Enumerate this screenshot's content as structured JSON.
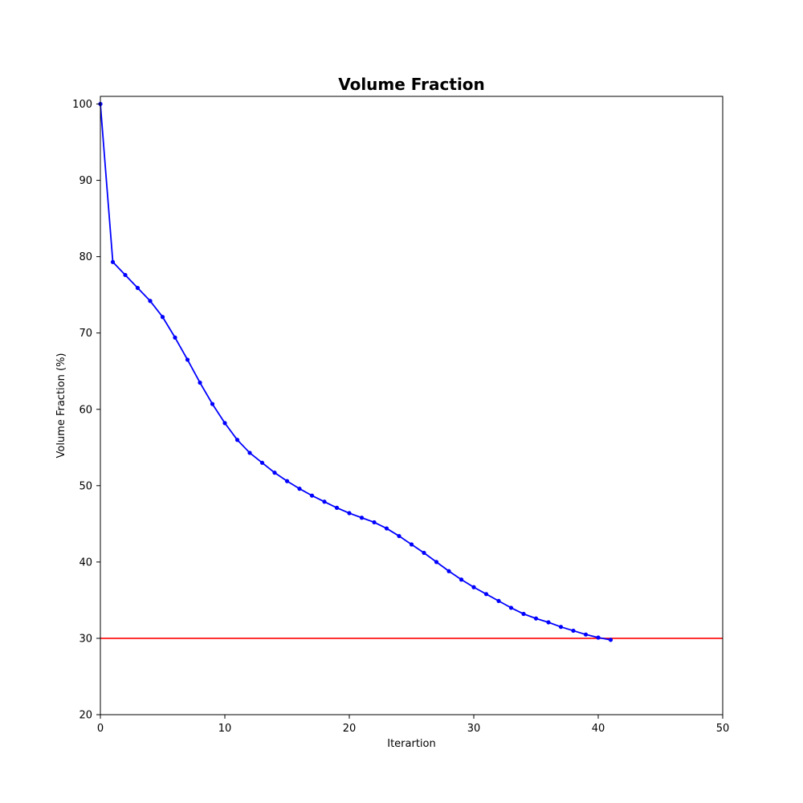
{
  "chart_data": {
    "type": "line",
    "title": "Volume Fraction",
    "xlabel": "Iterartion",
    "ylabel": "Volume Fraction (%)",
    "xlim": [
      0,
      50
    ],
    "ylim": [
      20,
      101
    ],
    "xticks": [
      "0",
      "10",
      "20",
      "30",
      "40",
      "50"
    ],
    "yticks": [
      "20",
      "30",
      "40",
      "50",
      "60",
      "70",
      "80",
      "90",
      "100"
    ],
    "grid": false,
    "series": [
      {
        "color": "#0000ff",
        "marker": "dot",
        "x": [
          0,
          1,
          2,
          3,
          4,
          5,
          6,
          7,
          8,
          9,
          10,
          11,
          12,
          13,
          14,
          15,
          16,
          17,
          18,
          19,
          20,
          21,
          22,
          23,
          24,
          25,
          26,
          27,
          28,
          29,
          30,
          31,
          32,
          33,
          34,
          35,
          36,
          37,
          38,
          39,
          40,
          41
        ],
        "y": [
          100,
          79.3,
          77.6,
          75.9,
          74.2,
          72.1,
          69.4,
          66.5,
          63.5,
          60.7,
          58.2,
          56.0,
          54.3,
          53.0,
          51.7,
          50.6,
          49.6,
          48.7,
          47.9,
          47.1,
          46.4,
          45.8,
          45.2,
          44.4,
          43.4,
          42.3,
          41.2,
          40.0,
          38.8,
          37.7,
          36.7,
          35.8,
          34.9,
          34.0,
          33.2,
          32.6,
          32.1,
          31.5,
          31.0,
          30.5,
          30.1,
          29.8
        ]
      }
    ],
    "reference_lines": [
      {
        "axis": "y",
        "value": 30,
        "color": "#ff0000"
      }
    ]
  }
}
